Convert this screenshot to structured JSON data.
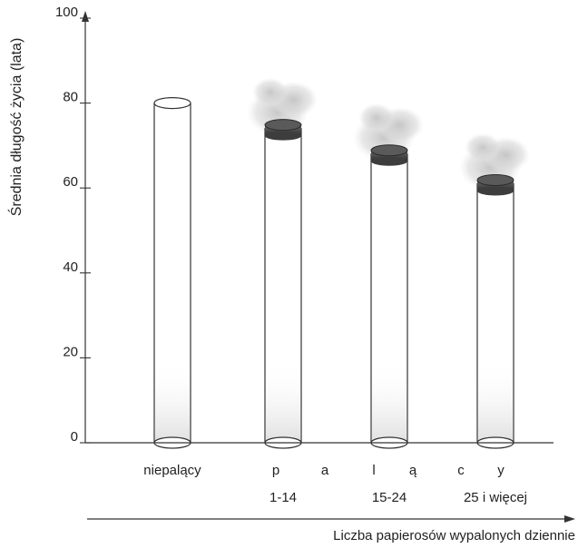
{
  "chart_data": {
    "type": "bar",
    "style": "cigarettes",
    "ylabel": "Średnia długość życia (lata)",
    "xlabel": "Liczba papierosów wypalonych dziennie",
    "ylim": [
      0,
      100
    ],
    "yticks": [
      0,
      20,
      40,
      60,
      80,
      100
    ],
    "group_label_letters": [
      "p",
      "a",
      "l",
      "ą",
      "c",
      "y"
    ],
    "categories": [
      "niepalący",
      "1-14",
      "15-24",
      "25 i więcej"
    ],
    "values": [
      80,
      74,
      68,
      61
    ],
    "lit": [
      false,
      true,
      true,
      true
    ],
    "colors": {
      "axis": "#333333",
      "text": "#222222",
      "outline": "#333333",
      "ash": "#3d3d3d",
      "smoke": "#cfcfcf"
    }
  }
}
